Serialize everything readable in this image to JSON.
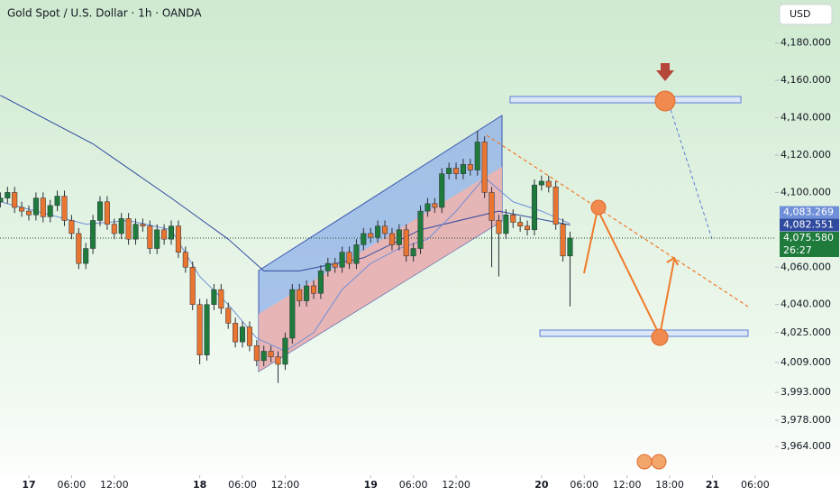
{
  "chart_data": {
    "type": "candlestick",
    "title": "Gold Spot / U.S. Dollar · 1h · OANDA",
    "currency": "USD",
    "countdown": "26:27",
    "xlim": [
      -4.05,
      104.8
    ],
    "ylim": [
      3952,
      4203
    ],
    "grid": false,
    "up_color": "#1e7b3c",
    "down_color": "#ea7530",
    "xticks": [
      {
        "value": 0,
        "label": "17"
      },
      {
        "value": 6,
        "label": "06:00"
      },
      {
        "value": 12,
        "label": "12:00"
      },
      {
        "value": 24,
        "label": "18"
      },
      {
        "value": 30,
        "label": "06:00"
      },
      {
        "value": 36,
        "label": "12:00"
      },
      {
        "value": 48,
        "label": "19"
      },
      {
        "value": 54,
        "label": "06:00"
      },
      {
        "value": 60,
        "label": "12:00"
      },
      {
        "value": 72,
        "label": "20"
      },
      {
        "value": 78,
        "label": "06:00"
      },
      {
        "value": 84,
        "label": "12:00"
      },
      {
        "value": 90,
        "label": "18:00"
      },
      {
        "value": 96,
        "label": "21"
      },
      {
        "value": 102,
        "label": "06:00"
      }
    ],
    "yticks": [
      {
        "value": 4180,
        "label": "4,180.000"
      },
      {
        "value": 4160,
        "label": "4,160.000"
      },
      {
        "value": 4140,
        "label": "4,140.000"
      },
      {
        "value": 4120,
        "label": "4,120.000"
      },
      {
        "value": 4100,
        "label": "4,100.000"
      },
      {
        "value": 4060,
        "label": "4,060.000"
      },
      {
        "value": 4040,
        "label": "4,040.000"
      },
      {
        "value": 4025,
        "label": "4,025.000"
      },
      {
        "value": 4009,
        "label": "4,009.000"
      },
      {
        "value": 3993,
        "label": "3,993.000"
      },
      {
        "value": 3978,
        "label": "3,978.000"
      },
      {
        "value": 3964,
        "label": "3,964.000"
      }
    ],
    "x": [
      -4,
      -3,
      -2,
      -1,
      0,
      1,
      2,
      3,
      4,
      5,
      6,
      7,
      8,
      9,
      10,
      11,
      12,
      13,
      14,
      15,
      16,
      17,
      18,
      19,
      20,
      21,
      22,
      23,
      24,
      25,
      26,
      27,
      28,
      29,
      30,
      31,
      32,
      33,
      34,
      35,
      36,
      37,
      38,
      39,
      40,
      41,
      42,
      43,
      44,
      45,
      46,
      47,
      48,
      49,
      50,
      51,
      52,
      53,
      54,
      55,
      56,
      57,
      58,
      59,
      60,
      61,
      62,
      63,
      64,
      65,
      66,
      67,
      68,
      69,
      70,
      71,
      72,
      73,
      74,
      75,
      76
    ],
    "open": [
      4095,
      4097,
      4100,
      4092,
      4090,
      4088,
      4097,
      4087,
      4093,
      4098,
      4085,
      4078,
      4062,
      4070,
      4085,
      4095,
      4083,
      4078,
      4086,
      4075,
      4083,
      4082,
      4070,
      4080,
      4075,
      4082,
      4068,
      4060,
      4040,
      4013,
      4040,
      4048,
      4038,
      4030,
      4020,
      4028,
      4018,
      4010,
      4015,
      4012,
      4008,
      4022,
      4048,
      4042,
      4050,
      4046,
      4058,
      4062,
      4060,
      4068,
      4062,
      4072,
      4078,
      4076,
      4082,
      4078,
      4072,
      4080,
      4066,
      4070,
      4090,
      4094,
      4092,
      4110,
      4113,
      4110,
      4115,
      4112,
      4127,
      4100,
      4085,
      4078,
      4088,
      4084,
      4082,
      4080,
      4104,
      4106,
      4103,
      4083,
      4066
    ],
    "high": [
      4100,
      4103,
      4103,
      4095,
      4093,
      4100,
      4100,
      4096,
      4101,
      4101,
      4088,
      4081,
      4073,
      4088,
      4098,
      4098,
      4086,
      4089,
      4089,
      4086,
      4086,
      4085,
      4083,
      4083,
      4085,
      4085,
      4071,
      4063,
      4043,
      4043,
      4051,
      4051,
      4041,
      4033,
      4031,
      4031,
      4021,
      4018,
      4018,
      4015,
      4025,
      4051,
      4051,
      4053,
      4053,
      4061,
      4065,
      4065,
      4071,
      4071,
      4075,
      4081,
      4081,
      4085,
      4085,
      4081,
      4083,
      4083,
      4073,
      4093,
      4097,
      4097,
      4113,
      4116,
      4116,
      4118,
      4118,
      4133,
      4130,
      4103,
      4088,
      4091,
      4091,
      4087,
      4085,
      4107,
      4109,
      4109,
      4106,
      4086,
      4079
    ],
    "low": [
      4092,
      4094,
      4089,
      4087,
      4085,
      4085,
      4084,
      4084,
      4090,
      4082,
      4075,
      4059,
      4059,
      4067,
      4082,
      4080,
      4075,
      4075,
      4072,
      4072,
      4079,
      4067,
      4067,
      4072,
      4072,
      4065,
      4057,
      4037,
      4008,
      4010,
      4037,
      4035,
      4027,
      4017,
      4017,
      4015,
      4007,
      4007,
      4009,
      3998,
      4005,
      4019,
      4039,
      4039,
      4043,
      4043,
      4055,
      4057,
      4057,
      4059,
      4059,
      4069,
      4073,
      4073,
      4075,
      4069,
      4069,
      4063,
      4063,
      4067,
      4087,
      4089,
      4089,
      4107,
      4107,
      4107,
      4109,
      4109,
      4097,
      4060,
      4055,
      4075,
      4081,
      4079,
      4077,
      4077,
      4101,
      4100,
      4080,
      4063,
      4039
    ],
    "close": [
      4097,
      4100,
      4092,
      4090,
      4088,
      4097,
      4087,
      4093,
      4098,
      4085,
      4078,
      4062,
      4070,
      4085,
      4095,
      4083,
      4078,
      4086,
      4075,
      4083,
      4082,
      4070,
      4080,
      4075,
      4082,
      4068,
      4060,
      4040,
      4013,
      4040,
      4048,
      4038,
      4030,
      4020,
      4028,
      4018,
      4010,
      4015,
      4012,
      4008,
      4022,
      4048,
      4042,
      4050,
      4046,
      4058,
      4062,
      4060,
      4068,
      4062,
      4072,
      4078,
      4076,
      4082,
      4078,
      4072,
      4080,
      4066,
      4070,
      4090,
      4094,
      4092,
      4110,
      4113,
      4110,
      4115,
      4112,
      4127,
      4100,
      4085,
      4078,
      4088,
      4084,
      4082,
      4080,
      4104,
      4106,
      4103,
      4083,
      4066,
      4075.58
    ],
    "overlays": [
      {
        "color": "#2f4a9e",
        "x": [
          -4,
          9,
          20,
          28,
          33,
          38,
          47,
          55,
          66,
          76
        ],
        "values": [
          4152,
          4126,
          4097,
          4075,
          4058,
          4058,
          4065,
          4080,
          4090,
          4082.551
        ]
      },
      {
        "color": "#6f8fd8",
        "x": [
          -4,
          8,
          14,
          20,
          24,
          28,
          32,
          36,
          40,
          44,
          48,
          52,
          56,
          60,
          64,
          68,
          72,
          76
        ],
        "values": [
          4095,
          4083,
          4085,
          4080,
          4055,
          4040,
          4022,
          4015,
          4025,
          4048,
          4062,
          4070,
          4075,
          4090,
          4108,
          4095,
          4090,
          4083.269
        ]
      }
    ],
    "price_labels": [
      {
        "value": 4083.269,
        "label": "4,083.269",
        "color": "#6f8fd8"
      },
      {
        "value": 4082.551,
        "label": "4,082.551",
        "color": "#2f4a9e"
      },
      {
        "value": 4075.58,
        "label": "4,075.580",
        "color": "#1e7b3c"
      }
    ]
  }
}
